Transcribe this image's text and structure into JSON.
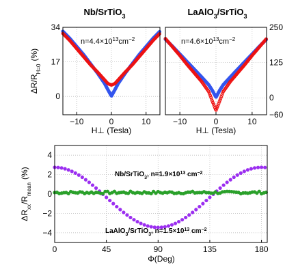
{
  "chart_data": [
    {
      "type": "scatter",
      "title": "Nb/SrTiO",
      "title_sub": "3",
      "ylabel": "ΔR/R",
      "ylabel_sub": "H=0",
      "ylabel_unit": "(%)",
      "xlabel": "H⊥ (Tesla)",
      "annotation_base": "n=4.4×10",
      "annotation_sup": "13",
      "annotation_unit": "cm",
      "annotation_unit_sup": "−2",
      "xlim": [
        -14,
        14
      ],
      "ylim": [
        -9,
        34
      ],
      "xticks": [
        -10,
        0,
        10
      ],
      "yticks": [
        0,
        17,
        34
      ],
      "ytick_side": "left",
      "grid": true,
      "series": [
        {
          "color": "#3355ee",
          "x": [
            -14,
            -12,
            -10,
            -8,
            -6,
            -4,
            -2,
            -1,
            0,
            1,
            2,
            4,
            6,
            8,
            10,
            12,
            14
          ],
          "y": [
            32,
            28.5,
            24.5,
            20.5,
            16,
            11.5,
            6.5,
            3.3,
            0.2,
            3.3,
            6.5,
            11.5,
            16,
            20.5,
            24.5,
            28.5,
            32
          ]
        },
        {
          "color": "#ee1111",
          "x": [
            -14,
            -12,
            -10,
            -8,
            -6,
            -4,
            -2,
            -1,
            0,
            1,
            2,
            4,
            6,
            8,
            10,
            12,
            14
          ],
          "y": [
            31,
            27.5,
            23.5,
            19.5,
            15.5,
            12,
            8.2,
            6.3,
            5.6,
            6.3,
            8.2,
            12,
            15.5,
            19.5,
            23.5,
            27.5,
            31
          ]
        }
      ]
    },
    {
      "type": "scatter",
      "title": "LaAlO",
      "title_mid": "3",
      "title_rest": "/SrTiO",
      "title_sub": "3",
      "xlabel": "H⊥ (Tesla)",
      "annotation_base": "n=4.6×10",
      "annotation_sup": "13",
      "annotation_unit": "cm",
      "annotation_unit_sup": "−2",
      "xlim": [
        -14,
        14
      ],
      "ylim": [
        -60,
        250
      ],
      "xticks": [
        -10,
        0,
        10
      ],
      "yticks": [
        -60,
        0,
        125,
        250
      ],
      "ytick_side": "right",
      "grid": true,
      "series": [
        {
          "color": "#3355ee",
          "x": [
            -14,
            -12,
            -10,
            -8,
            -6,
            -4,
            -2,
            -1,
            0,
            1,
            2,
            4,
            6,
            8,
            10,
            12,
            14
          ],
          "y": [
            208,
            182,
            155,
            128,
            101,
            74,
            46,
            26,
            2,
            26,
            46,
            74,
            101,
            128,
            155,
            182,
            208
          ]
        },
        {
          "color": "#ee1111",
          "x": [
            -14,
            -12,
            -10,
            -8,
            -6,
            -4,
            -2,
            -1,
            0,
            1,
            2,
            4,
            6,
            8,
            10,
            12,
            14
          ],
          "y": [
            210,
            180,
            150,
            118,
            88,
            58,
            22,
            -12,
            -45,
            -12,
            22,
            58,
            88,
            118,
            150,
            180,
            210
          ]
        }
      ]
    },
    {
      "type": "scatter",
      "ylabel": "ΔR",
      "ylabel_sub1": "xx",
      "ylabel_mid": "/R",
      "ylabel_sub2": "mean",
      "ylabel_unit": "(%)",
      "xlabel": "Φ(Deg)",
      "xlim": [
        0,
        185
      ],
      "ylim": [
        -5,
        5
      ],
      "xticks": [
        0,
        45,
        90,
        135,
        180
      ],
      "yticks": [
        -4,
        -2,
        0,
        2,
        4
      ],
      "grid": true,
      "annotations": [
        {
          "base": "Nb/SrTiO",
          "sub": "3",
          "mid": ", n=1.9×10",
          "sup": "13",
          "unit": " cm",
          "unit_sup": "−2",
          "x": 65,
          "y": 1.5
        },
        {
          "base": "LaAlO",
          "sub": "3",
          "mid": "/SrTiO",
          "sub2": "3",
          "mid2": ", n=1.5×10",
          "sup": "13",
          "unit": " cm",
          "unit_sup": "−2",
          "x": 65,
          "y": -4.3
        }
      ],
      "series": [
        {
          "color": "#9b2ef0",
          "model": "cosine",
          "amplitude": 3.1,
          "offset": -0.35,
          "period": 180,
          "x_start": 0,
          "x_end": 184,
          "x_step": 3
        },
        {
          "color": "#2aa02a",
          "model": "noisy-flat",
          "level": 0.15,
          "x_start": 0,
          "x_end": 184,
          "x_step": 2
        }
      ]
    }
  ]
}
